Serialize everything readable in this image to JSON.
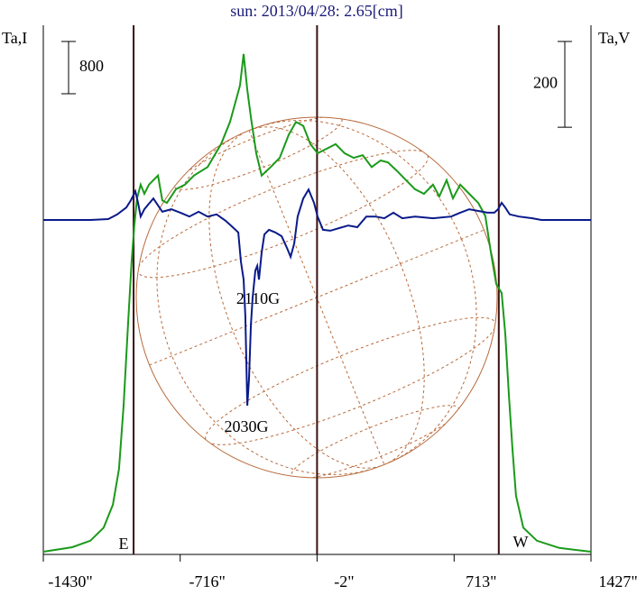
{
  "chart_data": {
    "type": "line",
    "title": "sun: 2013/04/28: 2.65[cm]",
    "y_label": "Ta,I",
    "y2_label": "Ta,V",
    "xlim": [
      -1430,
      1427
    ],
    "xticks": [
      {
        "value": -1430,
        "label": "-1430\""
      },
      {
        "value": -716,
        "label": "-716\""
      },
      {
        "value": -2,
        "label": "-2\""
      },
      {
        "value": 713,
        "label": "713\""
      },
      {
        "value": 1427,
        "label": "1427\""
      }
    ],
    "ylim": [
      0,
      8100
    ],
    "y2lim": [
      -780,
      454
    ],
    "vlines": [
      -959,
      -2,
      946
    ],
    "scale_bars": [
      {
        "axis": "y",
        "value": 800
      },
      {
        "axis": "y2",
        "value": 200
      }
    ],
    "annotations": [
      "E",
      "W",
      "2110G",
      "2030G"
    ],
    "series": [
      {
        "color": "#1a9a1a",
        "x": [
          -1430,
          -1279,
          -1185,
          -1115,
          -1067,
          -1035,
          -1011,
          -988,
          -969,
          -955,
          -941,
          -922,
          -903,
          -879,
          -856,
          -832,
          -809,
          -785,
          -738,
          -691,
          -644,
          -573,
          -503,
          -456,
          -423,
          -404,
          -385,
          -366,
          -347,
          -319,
          -291,
          -244,
          -197,
          -150,
          -112,
          -74,
          -37,
          1,
          48,
          95,
          142,
          189,
          236,
          283,
          330,
          368,
          415,
          462,
          509,
          556,
          603,
          636,
          674,
          707,
          745,
          792,
          839,
          876,
          905,
          933,
          961,
          980,
          999,
          1018,
          1036,
          1074,
          1145,
          1262,
          1427
        ],
        "values": [
          41,
          110,
          210,
          410,
          760,
          1310,
          2280,
          3520,
          4490,
          5040,
          5450,
          5660,
          5520,
          5660,
          5730,
          5800,
          5420,
          5380,
          5590,
          5660,
          5800,
          5930,
          6280,
          6620,
          6970,
          7180,
          7660,
          7110,
          6690,
          6140,
          5800,
          5930,
          6070,
          6420,
          6620,
          6560,
          6280,
          6140,
          6210,
          6280,
          6140,
          6070,
          6110,
          5930,
          6030,
          6000,
          5870,
          5730,
          5590,
          5520,
          5660,
          5480,
          5730,
          5450,
          5660,
          5520,
          5380,
          5180,
          4620,
          4140,
          4000,
          3380,
          2420,
          1590,
          900,
          410,
          210,
          100,
          41
        ]
      },
      {
        "color": "#0a1a8a",
        "axis": "y2",
        "x": [
          -1430,
          -1185,
          -1091,
          -1044,
          -997,
          -973,
          -950,
          -936,
          -922,
          -903,
          -879,
          -856,
          -832,
          -809,
          -762,
          -715,
          -668,
          -620,
          -573,
          -526,
          -479,
          -442,
          -413,
          -399,
          -385,
          -376,
          -371,
          -366,
          -357,
          -347,
          -338,
          -324,
          -314,
          -305,
          -291,
          -277,
          -253,
          -220,
          -187,
          -159,
          -140,
          -121,
          -103,
          -74,
          -46,
          -18,
          1,
          29,
          67,
          114,
          161,
          208,
          255,
          302,
          349,
          396,
          443,
          509,
          603,
          698,
          745,
          792,
          839,
          886,
          923,
          942,
          961,
          980,
          1003,
          1051,
          1121,
          1168,
          1427
        ],
        "values": [
          0,
          0,
          2,
          13,
          29,
          46,
          67,
          40,
          8,
          25,
          38,
          50,
          34,
          19,
          25,
          17,
          8,
          19,
          8,
          13,
          -2,
          -17,
          -29,
          -97,
          -139,
          -223,
          -328,
          -433,
          -370,
          -244,
          -181,
          -118,
          -107,
          -139,
          -76,
          -34,
          -23,
          -29,
          -38,
          -65,
          -86,
          -55,
          8,
          50,
          71,
          40,
          8,
          -23,
          -25,
          -19,
          -13,
          -17,
          8,
          8,
          4,
          17,
          4,
          8,
          4,
          8,
          17,
          25,
          21,
          17,
          17,
          25,
          40,
          29,
          13,
          8,
          4,
          0,
          0
        ]
      }
    ]
  }
}
